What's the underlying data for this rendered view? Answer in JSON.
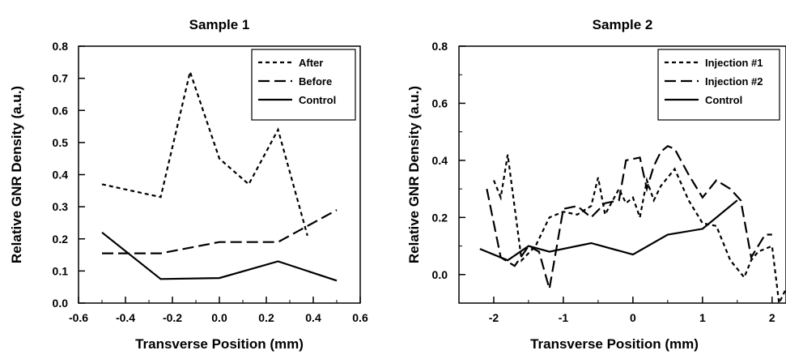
{
  "chart_data": [
    {
      "type": "line",
      "title": "Sample 1",
      "xlabel": "Transverse Position (mm)",
      "ylabel": "Relative GNR Density (a.u.)",
      "xlim": [
        -0.6,
        0.6
      ],
      "ylim": [
        0.0,
        0.8
      ],
      "x_ticks": [
        "-0.6",
        "-0.4",
        "-0.2",
        "0.0",
        "0.2",
        "0.4",
        "0.6"
      ],
      "y_ticks": [
        "0.0",
        "0.1",
        "0.2",
        "0.3",
        "0.4",
        "0.5",
        "0.6",
        "0.7",
        "0.8"
      ],
      "legend_position": "top-right",
      "grid": false,
      "series": [
        {
          "name": "After",
          "style": "dotted",
          "x": [
            -0.5,
            -0.25,
            -0.125,
            0.0,
            0.125,
            0.25,
            0.375
          ],
          "y": [
            0.37,
            0.33,
            0.72,
            0.45,
            0.37,
            0.54,
            0.21
          ]
        },
        {
          "name": "Before",
          "style": "dashed",
          "x": [
            -0.5,
            -0.25,
            0.0,
            0.25,
            0.5
          ],
          "y": [
            0.155,
            0.155,
            0.19,
            0.19,
            0.29
          ]
        },
        {
          "name": "Control",
          "style": "solid",
          "x": [
            -0.5,
            -0.25,
            0.0,
            0.25,
            0.5
          ],
          "y": [
            0.22,
            0.075,
            0.078,
            0.13,
            0.07
          ]
        }
      ]
    },
    {
      "type": "line",
      "title": "Sample 2",
      "xlabel": "Transverse Position (mm)",
      "ylabel": "Relative GNR Density (a.u.)",
      "xlim": [
        -2.5,
        2.2
      ],
      "ylim": [
        -0.1,
        0.8
      ],
      "x_ticks": [
        "-2",
        "-1",
        "0",
        "1",
        "2"
      ],
      "y_ticks": [
        "0.0",
        "0.2",
        "0.4",
        "0.6",
        "0.8"
      ],
      "legend_position": "top-right",
      "grid": false,
      "series": [
        {
          "name": "Injection #1",
          "style": "dotted",
          "x": [
            -2.0,
            -1.9,
            -1.8,
            -1.6,
            -1.4,
            -1.2,
            -1.0,
            -0.8,
            -0.6,
            -0.5,
            -0.4,
            -0.2,
            -0.1,
            0.0,
            0.1,
            0.2,
            0.3,
            0.4,
            0.6,
            0.8,
            1.0,
            1.2,
            1.4,
            1.6,
            1.7,
            1.8,
            2.0,
            2.1,
            2.2
          ],
          "y": [
            0.33,
            0.27,
            0.42,
            0.05,
            0.1,
            0.2,
            0.22,
            0.21,
            0.24,
            0.34,
            0.21,
            0.3,
            0.25,
            0.27,
            0.2,
            0.33,
            0.26,
            0.31,
            0.37,
            0.26,
            0.18,
            0.17,
            0.05,
            -0.01,
            0.05,
            0.08,
            0.1,
            -0.1,
            -0.05
          ]
        },
        {
          "name": "Injection #2",
          "style": "dashed",
          "x": [
            -2.1,
            -1.9,
            -1.7,
            -1.5,
            -1.35,
            -1.2,
            -1.0,
            -0.8,
            -0.6,
            -0.4,
            -0.2,
            -0.1,
            0.1,
            0.2,
            0.3,
            0.4,
            0.5,
            0.6,
            0.8,
            1.0,
            1.2,
            1.4,
            1.55,
            1.7,
            1.8,
            1.9,
            2.0
          ],
          "y": [
            0.3,
            0.06,
            0.03,
            0.1,
            0.08,
            -0.05,
            0.23,
            0.24,
            0.2,
            0.25,
            0.26,
            0.4,
            0.41,
            0.3,
            0.38,
            0.43,
            0.45,
            0.44,
            0.35,
            0.27,
            0.33,
            0.3,
            0.26,
            0.06,
            0.1,
            0.14,
            0.14
          ]
        },
        {
          "name": "Control",
          "style": "solid",
          "x": [
            -2.2,
            -1.8,
            -1.5,
            -1.2,
            -0.6,
            0.0,
            0.5,
            1.0,
            1.5
          ],
          "y": [
            0.09,
            0.05,
            0.1,
            0.08,
            0.11,
            0.07,
            0.14,
            0.16,
            0.26
          ]
        }
      ]
    }
  ]
}
